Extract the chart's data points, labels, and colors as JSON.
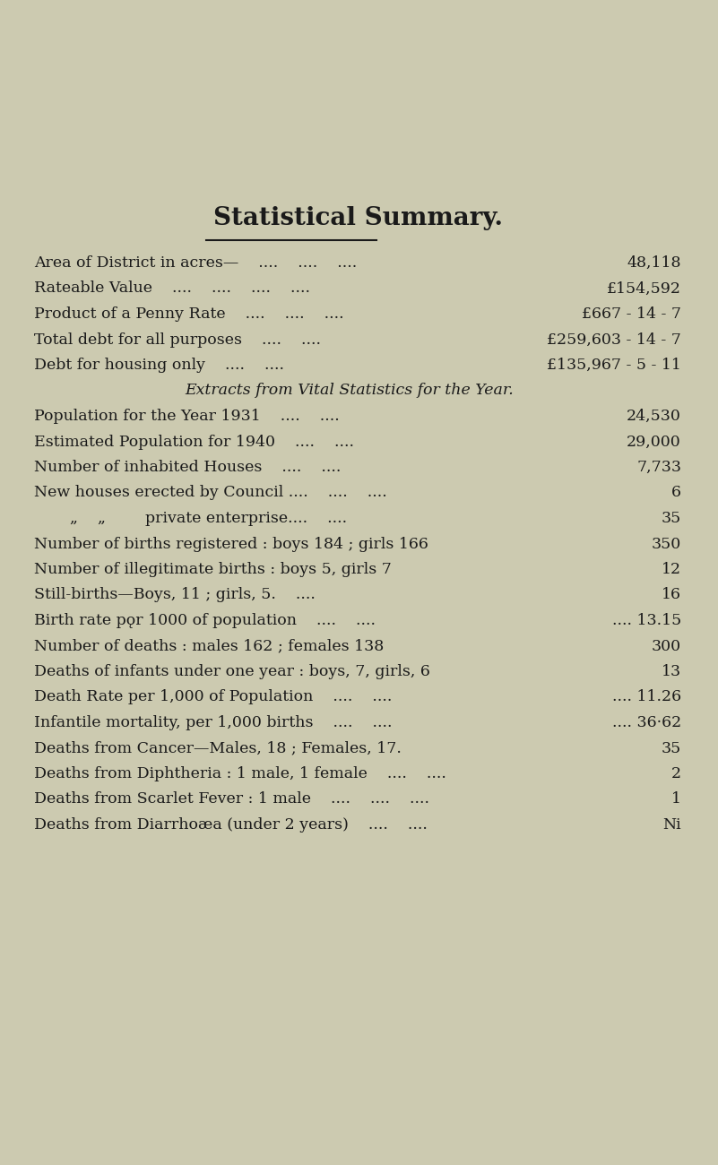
{
  "title": "Statistical Summary.",
  "background_color": "#cccab0",
  "text_color": "#1a1a1a",
  "title_fontsize": 20,
  "body_fontsize": 12.5,
  "italic_fontsize": 12.5,
  "rows": [
    {
      "label": "Area of District in acres—    ....    ....    ....",
      "value": "48,118",
      "indent": 0,
      "italic": false
    },
    {
      "label": "Rateable Value    ....    ....    ....    ....",
      "value": "£154,592",
      "indent": 0,
      "italic": false
    },
    {
      "label": "Product of a Penny Rate    ....    ....    .... £667 - 14 - 7",
      "value": "",
      "indent": 0,
      "italic": false,
      "right_label": "£667 - 14 - 7"
    },
    {
      "label": "Total debt for all purposes    ....    ....    £259,603 - 14 - 7",
      "value": "",
      "indent": 0,
      "italic": false,
      "right_label": "£259,603 - 14 - 7"
    },
    {
      "label": "Debt for housing only    ....    ....    £135,967 - 5 - 11",
      "value": "",
      "indent": 0,
      "italic": false,
      "right_label": "£135,967 - 5 - 11"
    },
    {
      "label": "Extracts from Vital Statistics for the Year.",
      "value": "",
      "indent": 0,
      "italic": true
    },
    {
      "label": "Population for the Year 1931    ....    ....",
      "value": "24,530",
      "indent": 0,
      "italic": false
    },
    {
      "label": "Estimated Population for 1940    ....    ....",
      "value": "29,000",
      "indent": 0,
      "italic": false
    },
    {
      "label": "Number of inhabited Houses    ....    ....",
      "value": "7,733",
      "indent": 0,
      "italic": false
    },
    {
      "label": "New houses erected by Council ....    ....    ....",
      "value": "6",
      "indent": 0,
      "italic": false
    },
    {
      "label": "„    „        private enterprise....    ....",
      "value": "35",
      "indent": 0,
      "italic": false
    },
    {
      "label": "Number of births registered : boys 184 ; girls 166",
      "value": "350",
      "indent": 0,
      "italic": false
    },
    {
      "label": "Number of illegitimate births : boys 5, girls 7",
      "value": "12",
      "indent": 0,
      "italic": false
    },
    {
      "label": "Still-births—Boys, 11 ; girls, 5.    ....",
      "value": "16",
      "indent": 0,
      "italic": false
    },
    {
      "label": "Birth rate pǫr 1000 of population    ....    ....",
      "value": ".... 13.15",
      "indent": 0,
      "italic": false
    },
    {
      "label": "Number of deaths : males 162 ; females 138",
      "value": "300",
      "indent": 0,
      "italic": false
    },
    {
      "label": "Deaths of infants under one year : boys, 7, girls, 6",
      "value": "13",
      "indent": 0,
      "italic": false
    },
    {
      "label": "Death Rate per 1,000 of Population    ....    ....",
      "value": ".... 11.26",
      "indent": 0,
      "italic": false
    },
    {
      "label": "Infantile mortality, per 1,000 births    ....    ....",
      "value": ".... 36·62",
      "indent": 0,
      "italic": false
    },
    {
      "label": "Deaths from Cancer—Males, 18 ; Females, 17.",
      "value": "35",
      "indent": 0,
      "italic": false
    },
    {
      "label": "Deaths from Diphtheria : 1 male, 1 female    ....    ....",
      "value": "2",
      "indent": 0,
      "italic": false
    },
    {
      "label": "Deaths from Scarlet Fever : 1 male    ....    ....    ....",
      "value": "1",
      "indent": 0,
      "italic": false
    },
    {
      "label": "Deaths from Diarrhoæa (under 2 years)    ....    ....",
      "value": "Ni",
      "indent": 0,
      "italic": false
    }
  ],
  "label_rows": [
    {
      "text": "Product of a Penny Rate",
      "dots": "....    ....    ....",
      "value": "£667 - 14 - 7"
    },
    {
      "text": "Total debt for all purposes",
      "dots": "....    ....",
      "value": "£259,603 - 14 - 7"
    },
    {
      "text": "Debt for housing only",
      "dots": "....    ....",
      "value": "£135,967 - 5 - 11"
    }
  ]
}
